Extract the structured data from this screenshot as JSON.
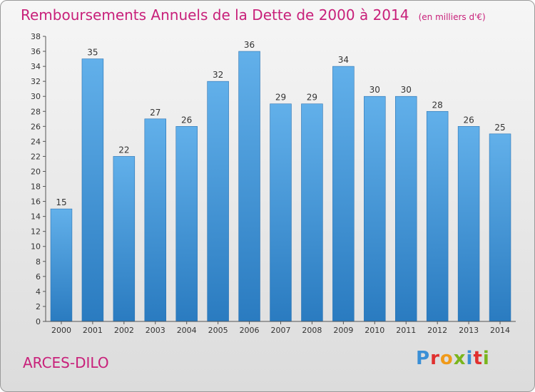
{
  "chart_data": {
    "type": "bar",
    "title": "Remboursements Annuels de la Dette de 2000 à 2014",
    "unit": "(en milliers d'€)",
    "categories": [
      "2000",
      "2001",
      "2002",
      "2003",
      "2004",
      "2005",
      "2006",
      "2007",
      "2008",
      "2009",
      "2010",
      "2011",
      "2012",
      "2013",
      "2014"
    ],
    "values": [
      15,
      35,
      22,
      27,
      26,
      32,
      36,
      29,
      29,
      34,
      30,
      30,
      28,
      26,
      25
    ],
    "ylim": [
      0,
      38
    ],
    "yticks": [
      0,
      2,
      4,
      6,
      8,
      10,
      12,
      14,
      16,
      18,
      20,
      22,
      24,
      26,
      28,
      30,
      32,
      34,
      36,
      38
    ],
    "grid": false,
    "bar_color": "#3c93d6",
    "title_color": "#c8207a"
  },
  "footer": {
    "commune": "ARCES-DILO",
    "logo_text": "Proxiti"
  },
  "logo_colors": [
    "#3a8fd6",
    "#e0302f",
    "#f09a1a",
    "#7ab51d",
    "#3a8fd6",
    "#e0302f",
    "#7ab51d"
  ]
}
